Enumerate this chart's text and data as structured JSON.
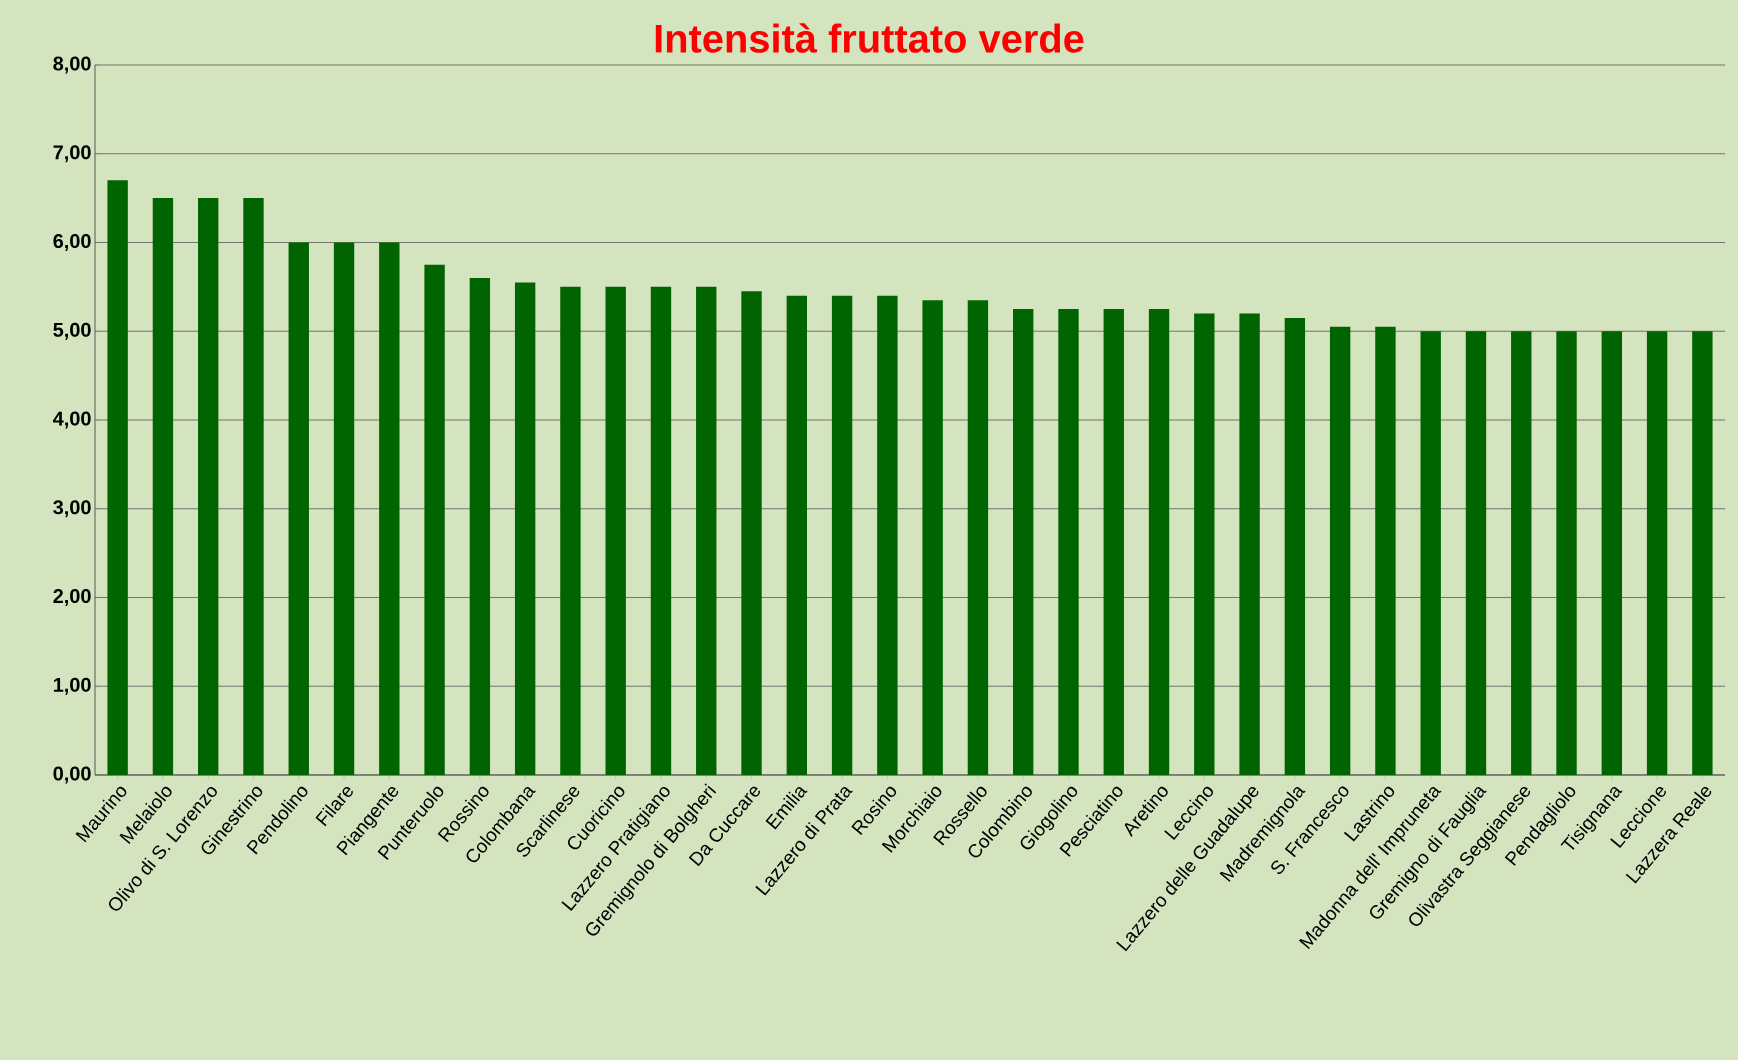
{
  "chart_data": {
    "type": "bar",
    "title": "Intensità fruttato verde",
    "categories": [
      "Maurino",
      "Melaiolo",
      "Olivo di S. Lorenzo",
      "Ginestrino",
      "Pendolino",
      "Filare",
      "Piangente",
      "Punteruolo",
      "Rossino",
      "Colombana",
      "Scarlinese",
      "Cuoricino",
      "Lazzero Pratigiano",
      "Gremignolo di Bolgheri",
      "Da Cuccare",
      "Emilia",
      "Lazzero di Prata",
      "Rosino",
      "Morchiaio",
      "Rossello",
      "Colombino",
      "Giogolino",
      "Pesciatino",
      "Aretino",
      "Leccino",
      "Lazzero delle Guadalupe",
      "Madremignola",
      "S. Francesco",
      "Lastrino",
      "Madonna dell' Impruneta",
      "Gremigno di Fauglia",
      "Olivastra Seggianese",
      "Pendagliolo",
      "Tisignana",
      "Leccione",
      "Lazzera Reale"
    ],
    "values": [
      6.7,
      6.5,
      6.5,
      6.5,
      6.0,
      6.0,
      6.0,
      5.75,
      5.6,
      5.55,
      5.5,
      5.5,
      5.5,
      5.5,
      5.45,
      5.4,
      5.4,
      5.4,
      5.35,
      5.35,
      5.25,
      5.25,
      5.25,
      5.25,
      5.2,
      5.2,
      5.15,
      5.05,
      5.05,
      5.0,
      5.0,
      5.0,
      5.0,
      5.0,
      5.0,
      5.0
    ],
    "color": "#006400",
    "ylim": [
      0,
      8
    ],
    "yticks": [
      {
        "value": 0,
        "label": "0,00"
      },
      {
        "value": 1,
        "label": "1,00"
      },
      {
        "value": 2,
        "label": "2,00"
      },
      {
        "value": 3,
        "label": "3,00"
      },
      {
        "value": 4,
        "label": "4,00"
      },
      {
        "value": 5,
        "label": "5,00"
      },
      {
        "value": 6,
        "label": "6,00"
      },
      {
        "value": 7,
        "label": "7,00"
      },
      {
        "value": 8,
        "label": "8,00"
      }
    ],
    "grid": "y"
  }
}
